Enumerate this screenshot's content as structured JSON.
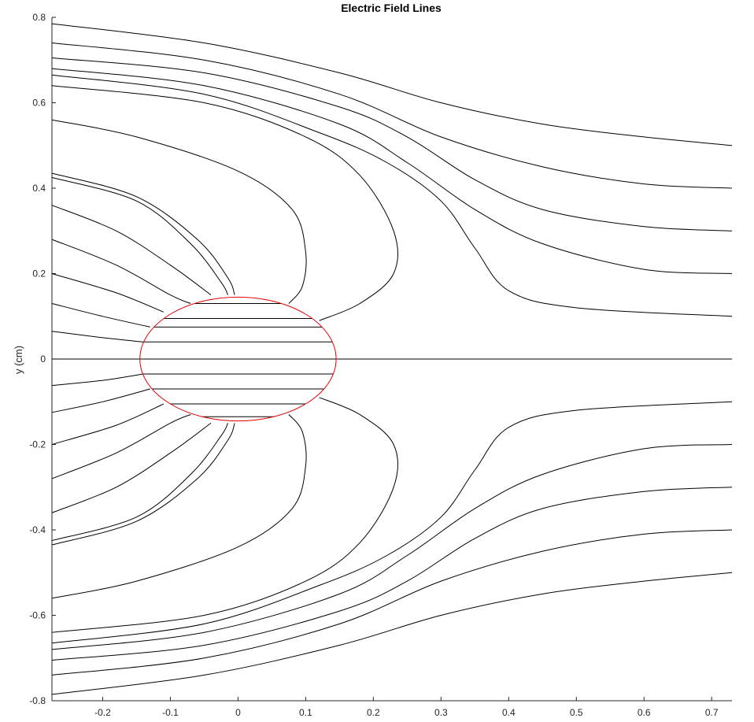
{
  "chart_data": {
    "type": "line",
    "title": "Electric Field Lines",
    "xlabel": "",
    "ylabel": "y (cm)",
    "xlim": [
      -0.275,
      0.73
    ],
    "ylim": [
      -0.8,
      0.8
    ],
    "xticks": [
      "-0.2",
      "-0.1",
      "0",
      "0.1",
      "0.2",
      "0.3",
      "0.4",
      "0.5",
      "0.6",
      "0.7"
    ],
    "xtick_values": [
      -0.2,
      -0.1,
      0,
      0.1,
      0.2,
      0.3,
      0.4,
      0.5,
      0.6,
      0.7
    ],
    "yticks": [
      "0.8",
      "0.6",
      "0.4",
      "0.2",
      "0",
      "-0.2",
      "-0.4",
      "-0.6",
      "-0.8"
    ],
    "ytick_values": [
      0.8,
      0.6,
      0.4,
      0.2,
      0,
      -0.2,
      -0.4,
      -0.6,
      -0.8
    ],
    "grid": false,
    "line_color": "#000000",
    "conductor_color": "#e00000",
    "conductor": {
      "center": [
        0.0,
        0.0
      ],
      "rx": 0.145,
      "ry": 0.145
    },
    "interior_lines_y": [
      0.13,
      0.095,
      0.075,
      0.04,
      0.0,
      -0.035,
      -0.07,
      -0.105,
      -0.135
    ],
    "series": [
      {
        "points": [
          [
            -0.275,
            0.785
          ],
          [
            -0.05,
            0.74
          ],
          [
            0.15,
            0.67
          ],
          [
            0.3,
            0.6
          ],
          [
            0.45,
            0.55
          ],
          [
            0.6,
            0.52
          ],
          [
            0.73,
            0.5
          ]
        ]
      },
      {
        "points": [
          [
            -0.275,
            0.74
          ],
          [
            -0.05,
            0.7
          ],
          [
            0.15,
            0.62
          ],
          [
            0.3,
            0.52
          ],
          [
            0.45,
            0.45
          ],
          [
            0.6,
            0.41
          ],
          [
            0.73,
            0.4
          ]
        ]
      },
      {
        "points": [
          [
            -0.275,
            0.705
          ],
          [
            -0.05,
            0.67
          ],
          [
            0.15,
            0.59
          ],
          [
            0.25,
            0.52
          ],
          [
            0.35,
            0.42
          ],
          [
            0.45,
            0.35
          ],
          [
            0.6,
            0.31
          ],
          [
            0.73,
            0.3
          ]
        ]
      },
      {
        "points": [
          [
            -0.275,
            0.68
          ],
          [
            -0.05,
            0.64
          ],
          [
            0.15,
            0.55
          ],
          [
            0.25,
            0.46
          ],
          [
            0.35,
            0.35
          ],
          [
            0.45,
            0.27
          ],
          [
            0.6,
            0.21
          ],
          [
            0.73,
            0.2
          ]
        ]
      },
      {
        "points": [
          [
            -0.275,
            0.665
          ],
          [
            -0.05,
            0.62
          ],
          [
            0.12,
            0.53
          ],
          [
            0.22,
            0.46
          ],
          [
            0.3,
            0.37
          ],
          [
            0.35,
            0.26
          ],
          [
            0.4,
            0.16
          ],
          [
            0.5,
            0.12
          ],
          [
            0.73,
            0.1
          ]
        ]
      },
      {
        "points": [
          [
            -0.275,
            0.64
          ],
          [
            -0.05,
            0.6
          ],
          [
            0.1,
            0.52
          ],
          [
            0.18,
            0.43
          ],
          [
            0.23,
            0.3
          ],
          [
            0.23,
            0.2
          ],
          [
            0.18,
            0.13
          ],
          [
            0.12,
            0.09
          ]
        ]
      },
      {
        "points": [
          [
            -0.275,
            0.56
          ],
          [
            -0.15,
            0.52
          ],
          [
            0.0,
            0.44
          ],
          [
            0.08,
            0.35
          ],
          [
            0.1,
            0.25
          ],
          [
            0.095,
            0.17
          ],
          [
            0.075,
            0.13
          ]
        ]
      },
      {
        "points": [
          [
            -0.275,
            0.435
          ],
          [
            -0.15,
            0.38
          ],
          [
            -0.06,
            0.28
          ],
          [
            -0.015,
            0.19
          ],
          [
            -0.005,
            0.15
          ]
        ]
      },
      {
        "points": [
          [
            -0.275,
            0.425
          ],
          [
            -0.15,
            0.37
          ],
          [
            -0.07,
            0.27
          ],
          [
            -0.025,
            0.18
          ],
          [
            -0.015,
            0.15
          ]
        ]
      },
      {
        "points": [
          [
            -0.275,
            0.36
          ],
          [
            -0.18,
            0.3
          ],
          [
            -0.1,
            0.22
          ],
          [
            -0.04,
            0.15
          ]
        ]
      },
      {
        "points": [
          [
            -0.275,
            0.28
          ],
          [
            -0.18,
            0.22
          ],
          [
            -0.1,
            0.15
          ],
          [
            -0.07,
            0.13
          ]
        ]
      },
      {
        "points": [
          [
            -0.275,
            0.2
          ],
          [
            -0.18,
            0.155
          ],
          [
            -0.11,
            0.11
          ]
        ]
      },
      {
        "points": [
          [
            -0.275,
            0.13
          ],
          [
            -0.2,
            0.1
          ],
          [
            -0.13,
            0.075
          ]
        ]
      },
      {
        "points": [
          [
            -0.275,
            0.065
          ],
          [
            -0.2,
            0.05
          ],
          [
            -0.14,
            0.04
          ]
        ]
      },
      {
        "points": [
          [
            -0.275,
            0.0
          ],
          [
            0.73,
            0.0
          ]
        ]
      },
      {
        "points": [
          [
            -0.275,
            -0.062
          ],
          [
            -0.2,
            -0.05
          ],
          [
            -0.14,
            -0.035
          ]
        ]
      },
      {
        "points": [
          [
            -0.275,
            -0.125
          ],
          [
            -0.2,
            -0.1
          ],
          [
            -0.13,
            -0.07
          ]
        ]
      },
      {
        "points": [
          [
            -0.275,
            -0.2
          ],
          [
            -0.18,
            -0.155
          ],
          [
            -0.11,
            -0.105
          ]
        ]
      },
      {
        "points": [
          [
            -0.275,
            -0.28
          ],
          [
            -0.18,
            -0.22
          ],
          [
            -0.1,
            -0.15
          ],
          [
            -0.07,
            -0.13
          ]
        ]
      },
      {
        "points": [
          [
            -0.275,
            -0.36
          ],
          [
            -0.18,
            -0.3
          ],
          [
            -0.1,
            -0.22
          ],
          [
            -0.04,
            -0.15
          ]
        ]
      },
      {
        "points": [
          [
            -0.275,
            -0.425
          ],
          [
            -0.15,
            -0.37
          ],
          [
            -0.07,
            -0.27
          ],
          [
            -0.025,
            -0.18
          ],
          [
            -0.015,
            -0.15
          ]
        ]
      },
      {
        "points": [
          [
            -0.275,
            -0.435
          ],
          [
            -0.15,
            -0.38
          ],
          [
            -0.06,
            -0.28
          ],
          [
            -0.015,
            -0.19
          ],
          [
            -0.005,
            -0.15
          ]
        ]
      },
      {
        "points": [
          [
            -0.275,
            -0.56
          ],
          [
            -0.15,
            -0.52
          ],
          [
            0.0,
            -0.44
          ],
          [
            0.08,
            -0.35
          ],
          [
            0.1,
            -0.25
          ],
          [
            0.095,
            -0.17
          ],
          [
            0.075,
            -0.13
          ]
        ]
      },
      {
        "points": [
          [
            -0.275,
            -0.64
          ],
          [
            -0.05,
            -0.6
          ],
          [
            0.1,
            -0.52
          ],
          [
            0.18,
            -0.43
          ],
          [
            0.23,
            -0.3
          ],
          [
            0.23,
            -0.2
          ],
          [
            0.18,
            -0.13
          ],
          [
            0.12,
            -0.09
          ]
        ]
      },
      {
        "points": [
          [
            -0.275,
            -0.665
          ],
          [
            -0.05,
            -0.62
          ],
          [
            0.12,
            -0.53
          ],
          [
            0.22,
            -0.46
          ],
          [
            0.3,
            -0.37
          ],
          [
            0.35,
            -0.26
          ],
          [
            0.4,
            -0.16
          ],
          [
            0.5,
            -0.12
          ],
          [
            0.73,
            -0.1
          ]
        ]
      },
      {
        "points": [
          [
            -0.275,
            -0.68
          ],
          [
            -0.05,
            -0.64
          ],
          [
            0.15,
            -0.55
          ],
          [
            0.25,
            -0.46
          ],
          [
            0.35,
            -0.35
          ],
          [
            0.45,
            -0.27
          ],
          [
            0.6,
            -0.21
          ],
          [
            0.73,
            -0.2
          ]
        ]
      },
      {
        "points": [
          [
            -0.275,
            -0.705
          ],
          [
            -0.05,
            -0.67
          ],
          [
            0.15,
            -0.59
          ],
          [
            0.25,
            -0.52
          ],
          [
            0.35,
            -0.42
          ],
          [
            0.45,
            -0.35
          ],
          [
            0.6,
            -0.31
          ],
          [
            0.73,
            -0.3
          ]
        ]
      },
      {
        "points": [
          [
            -0.275,
            -0.74
          ],
          [
            -0.05,
            -0.7
          ],
          [
            0.15,
            -0.62
          ],
          [
            0.3,
            -0.52
          ],
          [
            0.45,
            -0.45
          ],
          [
            0.6,
            -0.41
          ],
          [
            0.73,
            -0.4
          ]
        ]
      },
      {
        "points": [
          [
            -0.275,
            -0.785
          ],
          [
            -0.05,
            -0.74
          ],
          [
            0.15,
            -0.67
          ],
          [
            0.3,
            -0.6
          ],
          [
            0.45,
            -0.55
          ],
          [
            0.6,
            -0.52
          ],
          [
            0.73,
            -0.5
          ]
        ]
      }
    ]
  }
}
